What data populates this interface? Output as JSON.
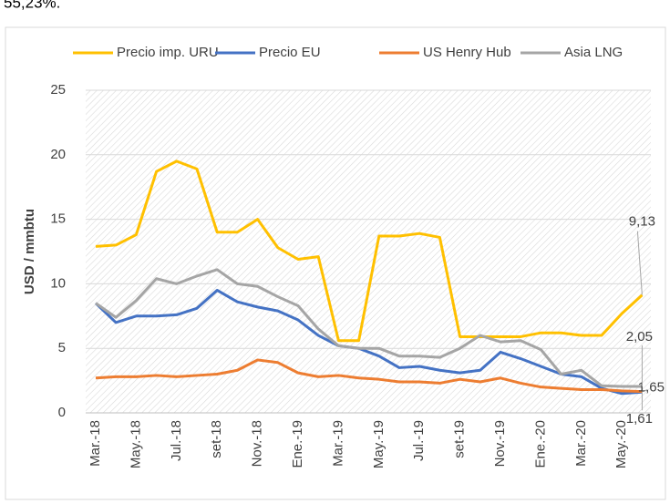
{
  "chart_data": {
    "type": "line",
    "note_top": "55,23%.",
    "y_label": "USD / mmbtu",
    "categories": [
      "Mar.-18",
      null,
      "May.-18",
      null,
      "Jul.-18",
      null,
      "set-18",
      null,
      "Nov.-18",
      null,
      "Ene.-19",
      null,
      "Mar.-19",
      null,
      "May.-19",
      null,
      "Jul.-19",
      null,
      "set-19",
      null,
      "Nov.-19",
      null,
      "Ene.-20",
      null,
      "Mar.-20",
      null,
      "May.-20",
      null
    ],
    "series": [
      {
        "name": "Precio imp. URU",
        "color": "#FFC000",
        "values": [
          12.9,
          13.0,
          13.8,
          18.7,
          19.5,
          18.9,
          14.0,
          14.0,
          15.0,
          12.8,
          11.9,
          12.1,
          5.6,
          5.6,
          13.7,
          13.7,
          13.9,
          13.6,
          5.9,
          5.9,
          5.9,
          5.9,
          6.2,
          6.2,
          6.0,
          6.0,
          7.7,
          9.13
        ],
        "value_labels": [
          null,
          null,
          null,
          null,
          null,
          null,
          null,
          null,
          null,
          null,
          null,
          null,
          null,
          null,
          null,
          null,
          null,
          null,
          null,
          null,
          null,
          null,
          null,
          null,
          null,
          null,
          null,
          "9,13"
        ]
      },
      {
        "name": "Precio EU",
        "color": "#4472C4",
        "values": [
          8.5,
          7.0,
          7.5,
          7.5,
          7.6,
          8.1,
          9.5,
          8.6,
          8.2,
          7.9,
          7.2,
          6.0,
          5.2,
          5.0,
          4.4,
          3.5,
          3.6,
          3.3,
          3.1,
          3.3,
          4.7,
          4.2,
          3.6,
          3.0,
          2.8,
          1.9,
          1.5,
          1.61
        ],
        "value_labels": [
          null,
          null,
          null,
          null,
          null,
          null,
          null,
          null,
          null,
          null,
          null,
          null,
          null,
          null,
          null,
          null,
          null,
          null,
          null,
          null,
          null,
          null,
          null,
          null,
          null,
          null,
          null,
          "1,61"
        ]
      },
      {
        "name": "US Henry Hub",
        "color": "#ED7D31",
        "values": [
          2.7,
          2.8,
          2.8,
          2.9,
          2.8,
          2.9,
          3.0,
          3.3,
          4.1,
          3.9,
          3.1,
          2.8,
          2.9,
          2.7,
          2.6,
          2.4,
          2.4,
          2.3,
          2.6,
          2.4,
          2.7,
          2.3,
          2.0,
          1.9,
          1.8,
          1.8,
          1.7,
          1.65
        ],
        "value_labels": [
          null,
          null,
          null,
          null,
          null,
          null,
          null,
          null,
          null,
          null,
          null,
          null,
          null,
          null,
          null,
          null,
          null,
          null,
          null,
          null,
          null,
          null,
          null,
          null,
          null,
          null,
          null,
          "1,65"
        ]
      },
      {
        "name": "Asia LNG",
        "color": "#A5A5A5",
        "values": [
          8.5,
          7.4,
          8.7,
          10.4,
          10.0,
          10.6,
          11.1,
          10.0,
          9.8,
          9.0,
          8.3,
          6.5,
          5.2,
          5.0,
          5.0,
          4.4,
          4.4,
          4.3,
          5.0,
          6.0,
          5.5,
          5.6,
          4.9,
          3.0,
          3.3,
          2.1,
          2.05,
          2.05
        ],
        "value_labels": [
          null,
          null,
          null,
          null,
          null,
          null,
          null,
          null,
          null,
          null,
          null,
          null,
          null,
          null,
          null,
          null,
          null,
          null,
          null,
          null,
          null,
          null,
          null,
          null,
          null,
          null,
          null,
          "2,05"
        ]
      }
    ],
    "ylim": [
      0,
      25
    ],
    "yticks": [
      0,
      5,
      10,
      15,
      20,
      25
    ],
    "grid": true,
    "legend": "top"
  }
}
